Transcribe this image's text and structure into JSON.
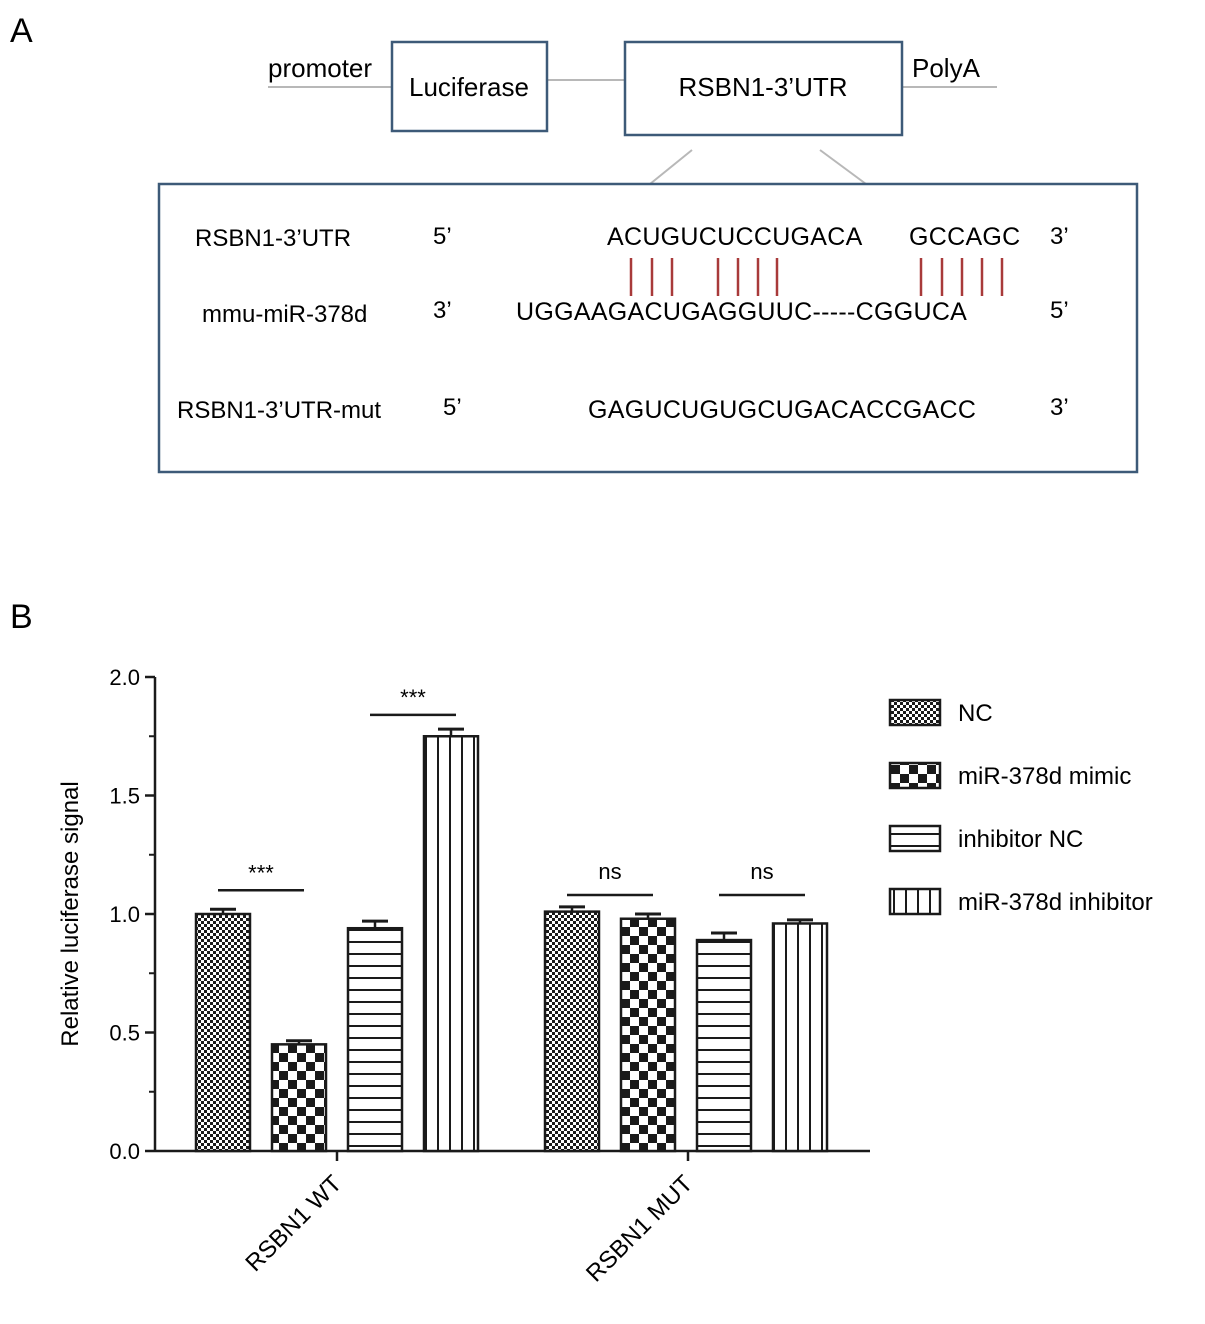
{
  "panel_a": {
    "letter": "A",
    "promoter_label": "promoter",
    "luciferase_label": "Luciferase",
    "utr_box_label": "RSBN1-3’UTR",
    "polya_label": "PolyA",
    "rows": [
      {
        "name": "RSBN1-3’UTR",
        "end_left": "5’",
        "seq_part1": "ACUGUCUCCUGACA",
        "seq_part2": "GCCAGC",
        "end_right": "3’"
      },
      {
        "name": "mmu-miR-378d",
        "end_left": "3’",
        "seq": "UGGAAGACUGAGGUUC-----CGGUCA",
        "end_right": "5’"
      },
      {
        "name": "RSBN1-3’UTR-mut",
        "end_left": "5’",
        "seq": "GAGUCUGUGCUGACACCGACC",
        "end_right": "3’"
      }
    ],
    "pair_line_color": "#a83a3a",
    "box_color": "#3d5a78"
  },
  "panel_b": {
    "letter": "B"
  },
  "chart_data": {
    "type": "bar",
    "ylabel": "Relative luciferase signal",
    "ylim": [
      0,
      2.0
    ],
    "yticks": [
      "0.0",
      "0.5",
      "1.0",
      "1.5",
      "2.0"
    ],
    "categories": [
      "RSBN1 WT",
      "RSBN1 MUT"
    ],
    "legend_position": "right",
    "series": [
      {
        "name": "NC",
        "pattern": "fine-check",
        "values": [
          1.0,
          1.01
        ],
        "errors": [
          0.02,
          0.02
        ]
      },
      {
        "name": "miR-378d mimic",
        "pattern": "checker",
        "values": [
          0.45,
          0.98
        ],
        "errors": [
          0.015,
          0.02
        ]
      },
      {
        "name": "inhibitor NC",
        "pattern": "horizontal",
        "values": [
          0.94,
          0.89
        ],
        "errors": [
          0.03,
          0.03
        ]
      },
      {
        "name": "miR-378d inhibitor",
        "pattern": "vertical",
        "values": [
          1.75,
          0.96
        ],
        "errors": [
          0.03,
          0.015
        ]
      }
    ],
    "significance": [
      {
        "label": "***",
        "category": 0,
        "from": 0,
        "to": 1,
        "y": 1.1
      },
      {
        "label": "***",
        "category": 0,
        "from": 2,
        "to": 3,
        "y": 1.84
      },
      {
        "label": "ns",
        "category": 1,
        "from": 0,
        "to": 1,
        "y": 1.08
      },
      {
        "label": "ns",
        "category": 1,
        "from": 2,
        "to": 3,
        "y": 1.08
      }
    ]
  }
}
